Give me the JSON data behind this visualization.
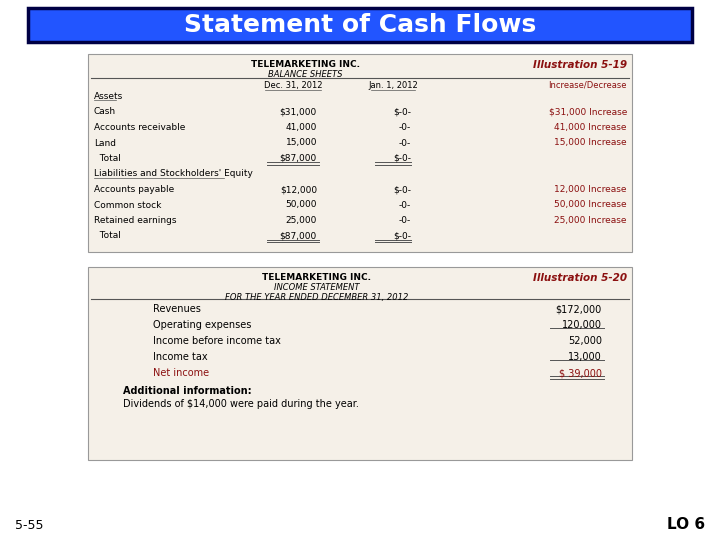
{
  "title": "Statement of Cash Flows",
  "title_bg": "#2255FF",
  "title_color": "#FFFFFF",
  "bg_color": "#FFFFFF",
  "panel_bg": "#F5F0E8",
  "illus19_label": "Illustration 5-19",
  "illus20_label": "Illustration 5-20",
  "illus_color": "#8B1010",
  "bs_title1": "TELEMARKETING INC.",
  "bs_title2": "BALANCE SHEETS",
  "is_title1": "TELEMARKETING INC.",
  "is_title2": "INCOME STATEMENT",
  "is_title3": "FOR THE YEAR ENDED DECEMBER 31, 2012",
  "footer_left": "5-55",
  "footer_right": "LO 6",
  "bs_col1": "Dec. 31, 2012",
  "bs_col2": "Jan. 1, 2012",
  "bs_col3": "Increase/Decrease",
  "bs_rows": [
    {
      "label": "Assets",
      "v1": "",
      "v2": "",
      "v3": "",
      "underline_label": true
    },
    {
      "label": "Cash",
      "v1": "$31,000",
      "v2": "$-0-",
      "v3": "$31,000 Increase"
    },
    {
      "label": "Accounts receivable",
      "v1": "41,000",
      "v2": "-0-",
      "v3": "41,000 Increase"
    },
    {
      "label": "Land",
      "v1": "15,000",
      "v2": "-0-",
      "v3": "15,000 Increase"
    },
    {
      "label": "  Total",
      "v1": "$87,000",
      "v2": "$-0-",
      "v3": "",
      "double_under": true
    },
    {
      "label": "Liabilities and Stockholders' Equity",
      "v1": "",
      "v2": "",
      "v3": "",
      "underline_label": true
    },
    {
      "label": "Accounts payable",
      "v1": "$12,000",
      "v2": "$-0-",
      "v3": "12,000 Increase"
    },
    {
      "label": "Common stock",
      "v1": "50,000",
      "v2": "-0-",
      "v3": "50,000 Increase"
    },
    {
      "label": "Retained earnings",
      "v1": "25,000",
      "v2": "-0-",
      "v3": "25,000 Increase"
    },
    {
      "label": "  Total",
      "v1": "$87,000",
      "v2": "$-0-",
      "v3": "",
      "double_under": true
    }
  ],
  "is_rows": [
    {
      "label": "Revenues",
      "v1": "$172,000",
      "red": false,
      "under_v1": false
    },
    {
      "label": "Operating expenses",
      "v1": "120,000",
      "red": false,
      "under_v1": true
    },
    {
      "label": "Income before income tax",
      "v1": "52,000",
      "red": false,
      "under_v1": false
    },
    {
      "label": "Income tax",
      "v1": "13,000",
      "red": false,
      "under_v1": true
    },
    {
      "label": "Net income",
      "v1": "$ 39,000",
      "red": true,
      "under_v1": true,
      "double_under": true
    }
  ],
  "additional_label": "Additional information:",
  "additional_text": "Dividends of $14,000 were paid during the year."
}
